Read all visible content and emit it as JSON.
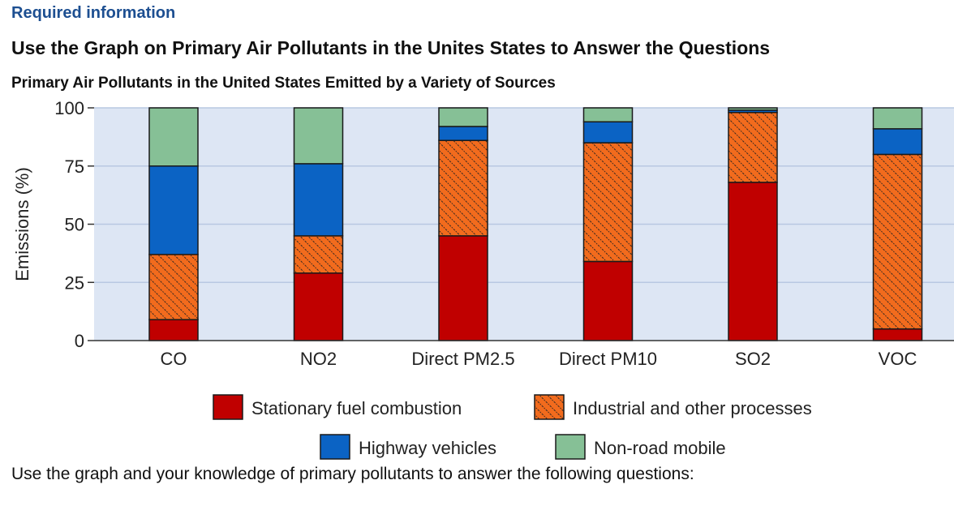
{
  "header": {
    "required_label": "Required information",
    "instruction": "Use the Graph on Primary Air Pollutants in the Unites States to Answer the Questions"
  },
  "footer": {
    "prompt": "Use the graph and your knowledge of primary pollutants to answer the following questions:"
  },
  "colors": {
    "plot_background": "#dde6f4",
    "gridline": "#b9c8e2",
    "stationary": "#c00000",
    "industrial": "#f26b1d",
    "highway": "#0b63c4",
    "nonroad": "#86c096",
    "hatch": "#222222"
  },
  "chart_data": {
    "type": "bar",
    "stacked": true,
    "title": "Primary Air Pollutants in the United States Emitted by a Variety of Sources",
    "ylabel": "Emissions (%)",
    "xlabel": "",
    "ylim": [
      0,
      100
    ],
    "yticks": [
      0,
      25,
      50,
      75,
      100
    ],
    "grid": true,
    "legend_position": "bottom",
    "categories": [
      "CO",
      "NO2",
      "Direct PM2.5",
      "Direct PM10",
      "SO2",
      "VOC"
    ],
    "series": [
      {
        "name": "Stationary fuel combustion",
        "color_key": "stationary",
        "pattern": "solid",
        "values": [
          9,
          29,
          45,
          34,
          68,
          5
        ]
      },
      {
        "name": "Industrial and other processes",
        "color_key": "industrial",
        "pattern": "hatched",
        "values": [
          28,
          16,
          41,
          51,
          30,
          75
        ]
      },
      {
        "name": "Highway vehicles",
        "color_key": "highway",
        "pattern": "solid",
        "values": [
          38,
          31,
          6,
          9,
          1,
          11
        ]
      },
      {
        "name": "Non-road mobile",
        "color_key": "nonroad",
        "pattern": "solid",
        "values": [
          25,
          24,
          8,
          6,
          1,
          9
        ]
      }
    ]
  }
}
